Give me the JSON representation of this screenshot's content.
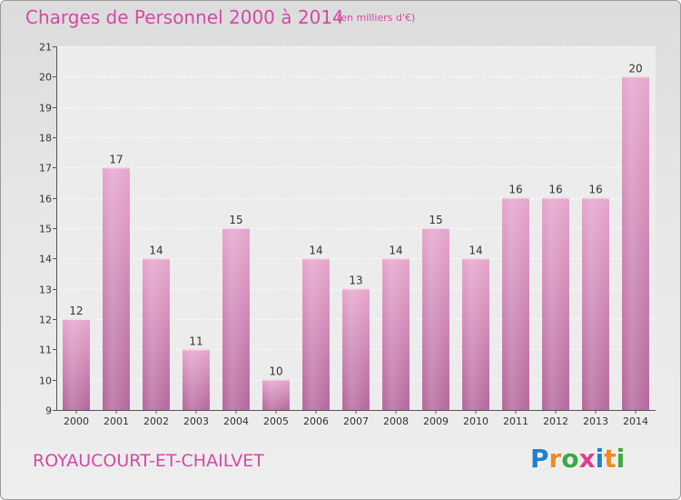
{
  "header": {
    "title": "Charges de Personnel 2000 à 2014",
    "subtitle": "(en milliers d'€)"
  },
  "footer": {
    "commune": "ROYAUCOURT-ET-CHAILVET",
    "logo": [
      "P",
      "r",
      "o",
      "x",
      "i",
      "t",
      "i"
    ]
  },
  "colors": {
    "title": "#d24aa6",
    "bar_top": "#e6a5cc",
    "bar_bottom": "#b3679a",
    "logo": [
      "#1e7fd0",
      "#f08a1c",
      "#3aa846",
      "#e03c8c",
      "#1e7fd0",
      "#f08a1c",
      "#3aa846"
    ]
  },
  "chart_data": {
    "type": "bar",
    "categories": [
      "2000",
      "2001",
      "2002",
      "2003",
      "2004",
      "2005",
      "2006",
      "2007",
      "2008",
      "2009",
      "2010",
      "2011",
      "2012",
      "2013",
      "2014"
    ],
    "values": [
      12,
      17,
      14,
      11,
      15,
      10,
      14,
      13,
      14,
      15,
      14,
      16,
      16,
      16,
      20
    ],
    "title": "Charges de Personnel 2000 à 2014",
    "subtitle": "(en milliers d'€)",
    "xlabel": "",
    "ylabel": "",
    "ylim": [
      9,
      21
    ],
    "yticks": [
      9,
      10,
      11,
      12,
      13,
      14,
      15,
      16,
      17,
      18,
      19,
      20,
      21
    ],
    "grid": true,
    "data_labels": true
  }
}
